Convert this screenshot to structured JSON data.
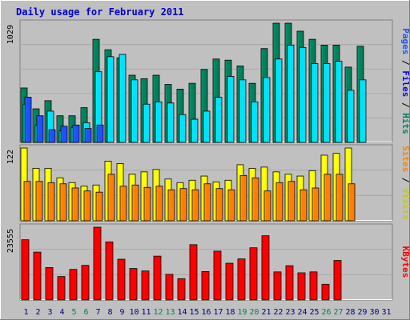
{
  "chart_data": {
    "type": "bar",
    "title": "Daily usage for February 2011",
    "categories": [
      "1",
      "2",
      "3",
      "4",
      "5",
      "6",
      "7",
      "8",
      "9",
      "10",
      "11",
      "12",
      "13",
      "14",
      "15",
      "16",
      "17",
      "18",
      "19",
      "20",
      "21",
      "22",
      "23",
      "24",
      "25",
      "26",
      "27",
      "28",
      "29",
      "30",
      "31"
    ],
    "weekend_days": [
      "5",
      "6",
      "12",
      "13",
      "19",
      "20",
      "26",
      "27"
    ],
    "top_panel": {
      "max_label": "1029",
      "ymax": 1029,
      "side_label": {
        "pages": "Pages",
        "files": "Files",
        "hits": "Hits",
        "sep": " / "
      },
      "series": [
        {
          "name": "Hits",
          "color": "#00805c",
          "values": [
            470,
            290,
            360,
            230,
            230,
            300,
            890,
            800,
            730,
            580,
            550,
            580,
            500,
            460,
            510,
            630,
            720,
            710,
            660,
            510,
            810,
            1029,
            1029,
            960,
            890,
            840,
            840,
            650,
            830,
            null,
            null
          ]
        },
        {
          "name": "Files",
          "color": "#00e0ff",
          "values": [
            330,
            150,
            270,
            100,
            130,
            170,
            610,
            740,
            760,
            540,
            330,
            350,
            340,
            240,
            200,
            270,
            390,
            570,
            540,
            350,
            560,
            720,
            840,
            820,
            680,
            680,
            700,
            450,
            540,
            null,
            null
          ]
        },
        {
          "name": "Pages",
          "color": "#2050ff",
          "values": [
            390,
            230,
            110,
            140,
            150,
            120,
            150,
            0,
            0,
            0,
            0,
            0,
            0,
            0,
            0,
            0,
            0,
            0,
            0,
            0,
            0,
            0,
            0,
            0,
            0,
            0,
            0,
            0,
            0,
            null,
            null
          ]
        }
      ]
    },
    "middle_panel": {
      "max_label": "122",
      "ymax": 122,
      "side_label": {
        "sites": "Sites",
        "visits": "Visits",
        "sep": " / "
      },
      "series": [
        {
          "name": "Visits",
          "color": "#ffff00",
          "values": [
            122,
            88,
            88,
            72,
            64,
            58,
            60,
            100,
            96,
            78,
            82,
            86,
            70,
            64,
            68,
            75,
            65,
            68,
            94,
            88,
            90,
            82,
            78,
            75,
            84,
            110,
            113,
            122,
            null,
            null,
            null
          ]
        },
        {
          "name": "Sites",
          "color": "#ff8000",
          "values": [
            66,
            66,
            64,
            62,
            55,
            50,
            48,
            78,
            58,
            60,
            56,
            58,
            52,
            54,
            52,
            62,
            54,
            52,
            76,
            72,
            50,
            64,
            66,
            52,
            55,
            78,
            78,
            62,
            null,
            null,
            null
          ]
        }
      ]
    },
    "bottom_panel": {
      "max_label": "23555",
      "ymax": 23555,
      "side_label": {
        "kbytes": "KBytes"
      },
      "series": [
        {
          "name": "KBytes",
          "color": "#ff0000",
          "values": [
            19500,
            15500,
            10500,
            7600,
            9900,
            11200,
            23555,
            18800,
            13200,
            10200,
            9400,
            14200,
            8300,
            6900,
            17900,
            9200,
            15800,
            11900,
            13300,
            16900,
            20800,
            9100,
            11100,
            8800,
            9100,
            5100,
            12800,
            null,
            null,
            null,
            null
          ]
        }
      ]
    },
    "colors": {
      "background": "#c0c0c0",
      "title": "#0000cc",
      "plot_bg": "#c0c0c0",
      "grid": "#a0a0a0",
      "weekend_label": "#00805c",
      "weekday_label": "#000080"
    }
  }
}
